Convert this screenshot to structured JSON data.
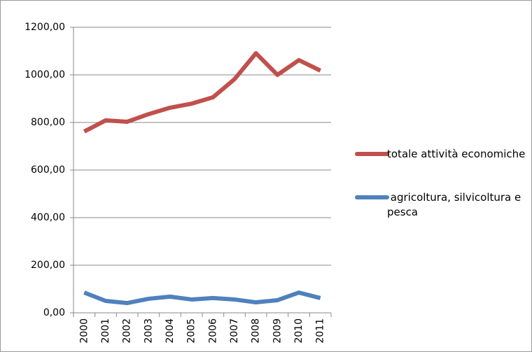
{
  "chart_data": {
    "type": "line",
    "categories": [
      "2000",
      "2001",
      "2002",
      "2003",
      "2004",
      "2005",
      "2006",
      "2007",
      "2008",
      "2009",
      "2010",
      "2011"
    ],
    "series": [
      {
        "name": "totale attività economiche",
        "color": "#c0504d",
        "values": [
          762,
          809,
          803,
          835,
          862,
          879,
          906,
          982,
          1091,
          1000,
          1062,
          1018
        ]
      },
      {
        "name": " agricoltura, silvicoltura e pesca",
        "color": "#4f81bd",
        "values": [
          85,
          50,
          41,
          59,
          68,
          56,
          62,
          56,
          44,
          53,
          85,
          62
        ]
      }
    ],
    "ylim": [
      0,
      1200
    ],
    "yticks": [
      {
        "value": 0,
        "label": "0,00"
      },
      {
        "value": 200,
        "label": "200,00"
      },
      {
        "value": 400,
        "label": "400,00"
      },
      {
        "value": 600,
        "label": "600,00"
      },
      {
        "value": 800,
        "label": "800,00"
      },
      {
        "value": 1000,
        "label": "1000,00"
      },
      {
        "value": 1200,
        "label": "1200,00"
      }
    ],
    "grid": true,
    "legend": "right"
  }
}
